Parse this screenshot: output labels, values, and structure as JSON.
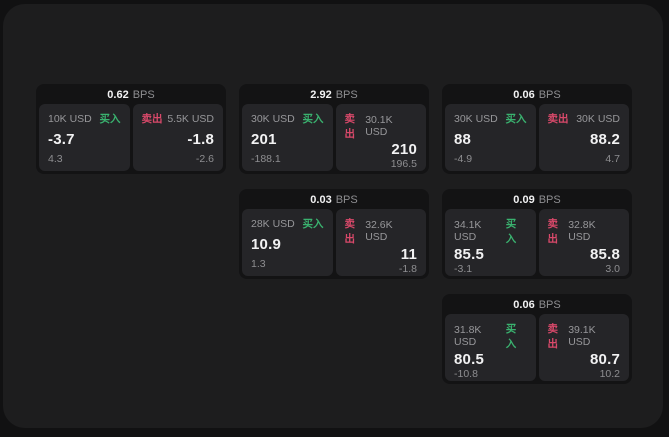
{
  "colors": {
    "buy": "#3ab26f",
    "sell": "#d9496a",
    "value_text": "#f2f2f3",
    "muted_text": "#8e8e91",
    "panel_background": "#1d1d1e",
    "card_background": "#131314",
    "subpanel_background": "#252528",
    "window_background": "#111112"
  },
  "labels": {
    "bps_unit": "BPS",
    "buy": "买入",
    "sell": "卖出"
  },
  "cards": [
    {
      "bps": "0.62",
      "buy_amount": "10K USD",
      "buy_price": "-3.7",
      "buy_sub": "4.3",
      "sell_amount": "5.5K USD",
      "sell_price": "-1.8",
      "sell_sub": "-2.6"
    },
    {
      "bps": "2.92",
      "buy_amount": "30K USD",
      "buy_price": "201",
      "buy_sub": "-188.1",
      "sell_amount": "30.1K USD",
      "sell_price": "210",
      "sell_sub": "196.5"
    },
    {
      "bps": "0.06",
      "buy_amount": "30K USD",
      "buy_price": "88",
      "buy_sub": "-4.9",
      "sell_amount": "30K USD",
      "sell_price": "88.2",
      "sell_sub": "4.7"
    },
    {
      "bps": "0.03",
      "buy_amount": "28K USD",
      "buy_price": "10.9",
      "buy_sub": "1.3",
      "sell_amount": "32.6K USD",
      "sell_price": "11",
      "sell_sub": "-1.8"
    },
    {
      "bps": "0.09",
      "buy_amount": "34.1K USD",
      "buy_price": "85.5",
      "buy_sub": "-3.1",
      "sell_amount": "32.8K USD",
      "sell_price": "85.8",
      "sell_sub": "3.0"
    },
    {
      "bps": "0.06",
      "buy_amount": "31.8K USD",
      "buy_price": "80.5",
      "buy_sub": "-10.8",
      "sell_amount": "39.1K USD",
      "sell_price": "80.7",
      "sell_sub": "10.2"
    }
  ]
}
